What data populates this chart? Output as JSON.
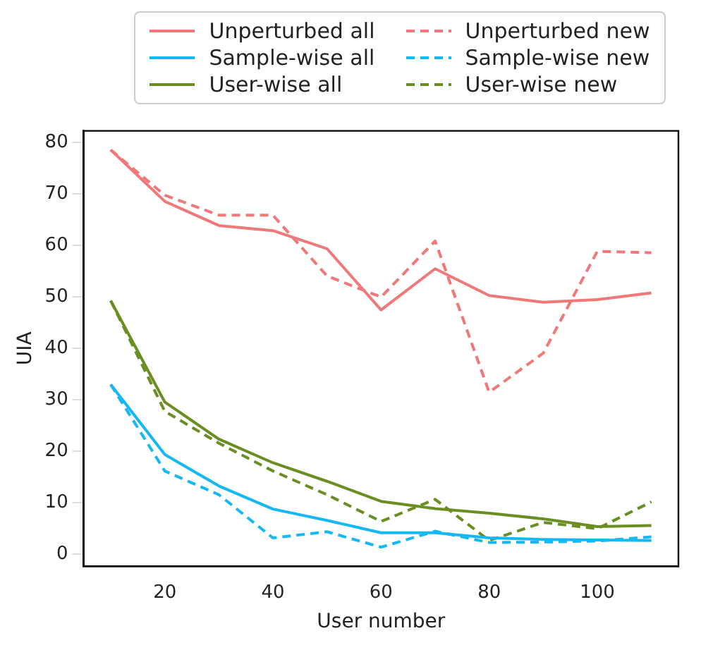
{
  "chart_data": {
    "type": "line",
    "xlabel": "User number",
    "ylabel": "UIA",
    "x": [
      10,
      20,
      30,
      40,
      50,
      60,
      70,
      80,
      90,
      100,
      110
    ],
    "xlim": [
      5,
      115
    ],
    "xticks": [
      20,
      40,
      60,
      80,
      100
    ],
    "ylim": [
      -2.3,
      82.3
    ],
    "yticks": [
      0,
      10,
      20,
      30,
      40,
      50,
      60,
      70,
      80
    ],
    "grid": false,
    "legend": "top",
    "marker": "none",
    "series": [
      {
        "name": "Unperturbed all",
        "color": "#f07878",
        "line_style": "solid",
        "values": [
          78.6,
          68.6,
          63.9,
          62.9,
          59.4,
          47.5,
          55.5,
          50.3,
          49,
          49.5,
          50.8
        ]
      },
      {
        "name": "Sample-wise all",
        "color": "#14b8f5",
        "line_style": "solid",
        "values": [
          33,
          19.4,
          13.3,
          8.8,
          6.6,
          4.2,
          4.2,
          3.2,
          2.9,
          2.8,
          2.7
        ]
      },
      {
        "name": "User-wise all",
        "color": "#6b8e23",
        "line_style": "solid",
        "values": [
          49.3,
          29.6,
          22.4,
          17.8,
          14.2,
          10.3,
          8.9,
          8,
          6.9,
          5.4,
          5.6
        ]
      },
      {
        "name": "Unperturbed new",
        "color": "#f07878",
        "line_style": "dashed",
        "values": [
          78.6,
          69.8,
          65.9,
          65.9,
          54.1,
          50,
          60.9,
          31.5,
          39.1,
          58.9,
          58.6
        ]
      },
      {
        "name": "Sample-wise new",
        "color": "#14b8f5",
        "line_style": "dashed",
        "values": [
          33,
          16.2,
          11.6,
          3.2,
          4.4,
          1.4,
          4.5,
          2.3,
          2.4,
          2.6,
          3.4
        ]
      },
      {
        "name": "User-wise new",
        "color": "#6b8e23",
        "line_style": "dashed",
        "values": [
          49.3,
          27.8,
          21.6,
          16.2,
          11.6,
          6.4,
          10.7,
          2.7,
          6.2,
          5,
          10.2
        ]
      }
    ]
  }
}
